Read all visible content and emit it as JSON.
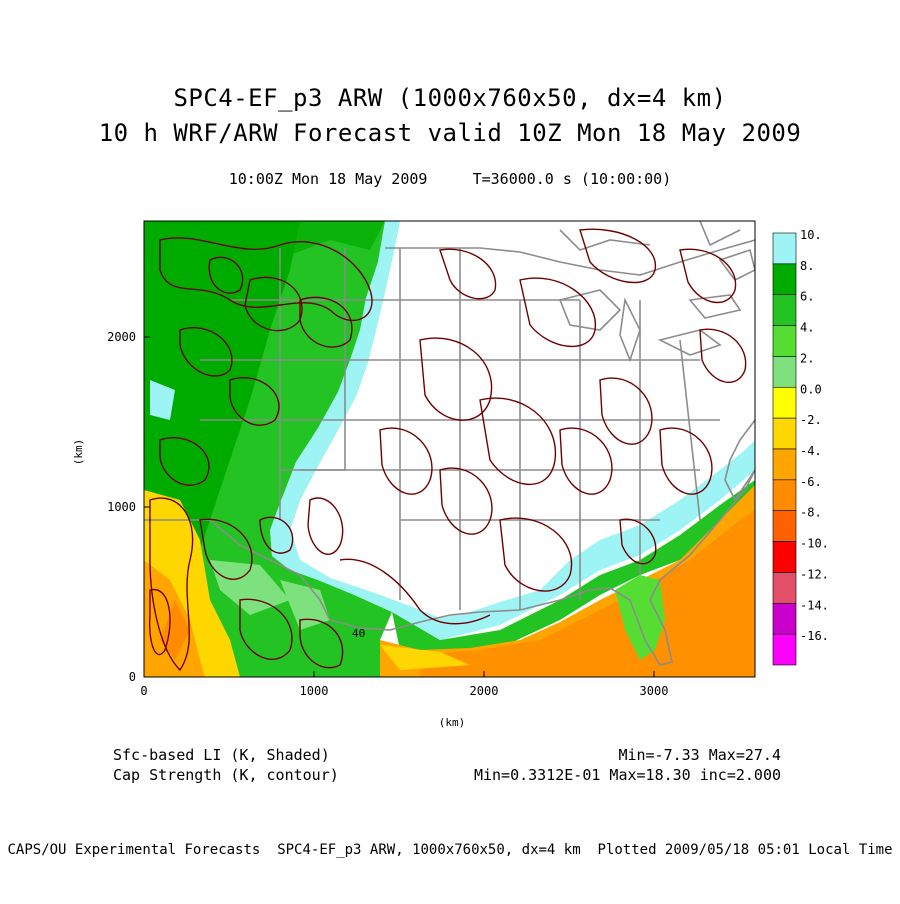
{
  "header": {
    "title_line1": "SPC4-EF_p3 ARW (1000x760x50, dx=4 km)",
    "title_line2": "10 h WRF/ARW Forecast valid 10Z Mon 18 May 2009",
    "subtitle": "10:00Z Mon 18 May 2009     T=36000.0 s (10:00:00)"
  },
  "axes": {
    "x_label": "(km)",
    "y_label": "(km)",
    "x_ticks": [
      "0",
      "1000",
      "2000",
      "3000"
    ],
    "y_ticks": [
      "0",
      "1000",
      "2000"
    ]
  },
  "colorbar": {
    "labels": [
      "10.",
      "8.",
      "6.",
      "4.",
      "2.",
      "0.0",
      "-2.",
      "-4.",
      "-6.",
      "-8.",
      "-10.",
      "-12.",
      "-14.",
      "-16."
    ],
    "colors": [
      "#9ef4f4",
      "#00ab00",
      "#22c322",
      "#55dd33",
      "#7de27d",
      "#ffff00",
      "#ffd700",
      "#ffa500",
      "#ff8c00",
      "#ff6000",
      "#ff0000",
      "#e34f68",
      "#cc00cc",
      "#ff00ff"
    ]
  },
  "contour_label": "40",
  "legend": {
    "shaded": "Sfc-based LI (K, Shaded)",
    "contour": "Cap Strength (K, contour)",
    "shaded_stats": "Min=-7.33 Max=27.4",
    "contour_stats": "Min=0.3312E-01 Max=18.30 inc=2.000"
  },
  "footer": "CAPS/OU Experimental Forecasts  SPC4-EF_p3 ARW, 1000x760x50, dx=4 km  Plotted 2009/05/18 05:01 Local Time"
}
